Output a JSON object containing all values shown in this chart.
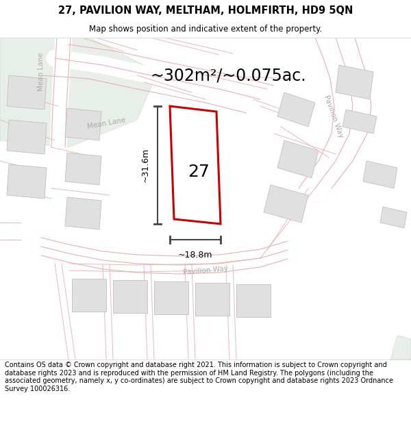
{
  "title": "27, PAVILION WAY, MELTHAM, HOLMFIRTH, HD9 5QN",
  "subtitle": "Map shows position and indicative extent of the property.",
  "area_text": "~302m²/~0.075ac.",
  "plot_number": "27",
  "width_label": "~18.8m",
  "height_label": "~31.6m",
  "footer": "Contains OS data © Crown copyright and database right 2021. This information is subject to Crown copyright and database rights 2023 and is reproduced with the permission of HM Land Registry. The polygons (including the associated geometry, namely x, y co-ordinates) are subject to Crown copyright and database rights 2023 Ordnance Survey 100026316.",
  "bg_map": "#ffffff",
  "road_fill": "#f5e8e8",
  "road_edge": "#e8b0b0",
  "plot_fill": "#ffffff",
  "plot_outline": "#cc0000",
  "building_fill": "#e0e0e0",
  "building_edge": "#c0c0c0",
  "green_fill": "#e8efe8",
  "green_edge": "#d0ddd0",
  "dim_line_color": "#444444",
  "road_label_color": "#aaaaaa",
  "title_fontsize": 10.5,
  "subtitle_fontsize": 8.5,
  "area_fontsize": 17,
  "plot_label_fontsize": 18,
  "footer_fontsize": 7.0,
  "dim_fontsize": 9
}
